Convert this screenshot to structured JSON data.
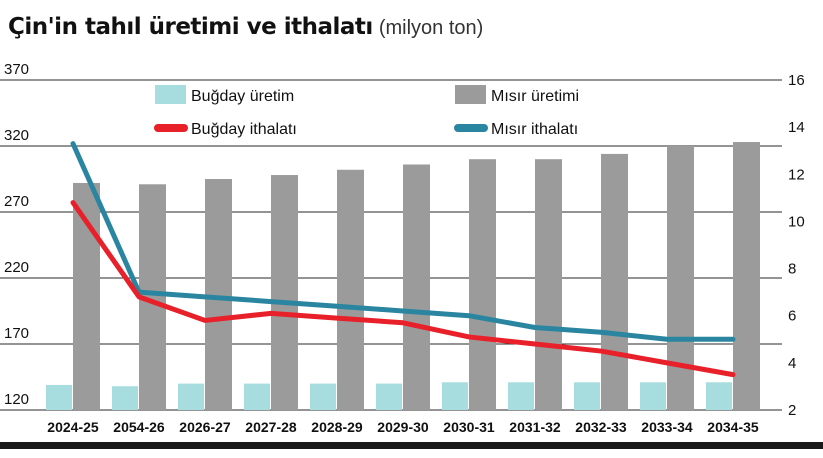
{
  "header": {
    "title": "Çin'in tahıl üretimi ve ithalatı",
    "unit": "(milyon ton)"
  },
  "chart_data": {
    "type": "bar",
    "categories": [
      "2024-25",
      "2054-26",
      "2026-27",
      "2027-28",
      "2028-29",
      "2029-30",
      "2030-31",
      "2031-32",
      "2032-33",
      "2033-34",
      "2034-35"
    ],
    "left_axis": {
      "ticks": [
        "370",
        "320",
        "270",
        "220",
        "170",
        "120"
      ],
      "ylim": [
        120,
        370
      ]
    },
    "right_axis": {
      "ticks": [
        "16",
        "14",
        "12",
        "10",
        "8",
        "6",
        "4",
        "2"
      ],
      "ylim": [
        2,
        16
      ]
    },
    "grid": true,
    "legend_placement": "top",
    "series": [
      {
        "name": "Buğday üretim",
        "kind": "bar",
        "axis": "left",
        "color": "#a8dde0",
        "values": [
          139,
          138,
          140,
          140,
          140,
          140,
          141,
          141,
          141,
          141,
          141
        ]
      },
      {
        "name": "Mısır üretimi",
        "kind": "bar",
        "axis": "left",
        "color": "#9b9b9b",
        "values": [
          292,
          291,
          295,
          298,
          302,
          306,
          310,
          310,
          314,
          320,
          323
        ]
      },
      {
        "name": "Buğday ithalatı",
        "kind": "line",
        "axis": "right",
        "color": "#e8202a",
        "values": [
          10.8,
          6.8,
          5.8,
          6.1,
          5.9,
          5.7,
          5.1,
          4.8,
          4.5,
          4.0,
          3.5
        ]
      },
      {
        "name": "Mısır ithalatı",
        "kind": "line",
        "axis": "right",
        "color": "#2a86a0",
        "values": [
          13.3,
          7.0,
          6.8,
          6.6,
          6.4,
          6.2,
          6.0,
          5.5,
          5.3,
          5.0,
          5.0
        ]
      }
    ]
  }
}
